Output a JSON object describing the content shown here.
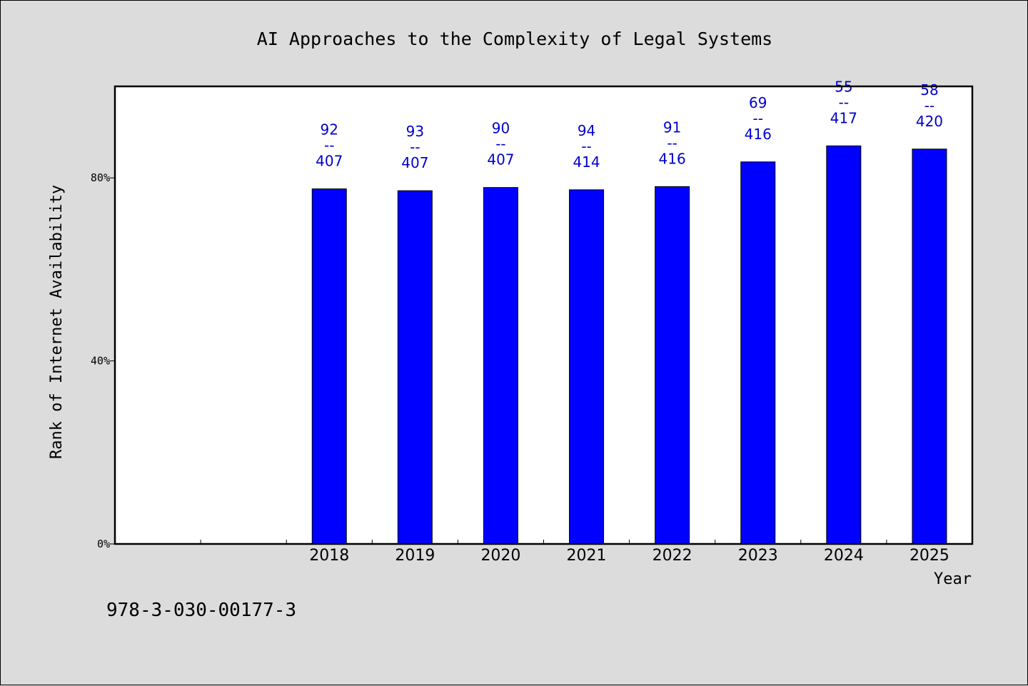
{
  "chart_data": {
    "type": "bar",
    "title": "AI Approaches to the Complexity of Legal Systems",
    "xlabel": "Year",
    "ylabel": "Rank of Internet Availability",
    "ylim": [
      0,
      100
    ],
    "yticks": [
      0,
      40,
      80
    ],
    "ytick_labels": [
      "0%",
      "40%",
      "80%"
    ],
    "categories": [
      "",
      "",
      "2018",
      "2019",
      "2020",
      "2021",
      "2022",
      "2023",
      "2024",
      "2025"
    ],
    "values": [
      null,
      null,
      77.6,
      77.2,
      77.9,
      77.4,
      78.1,
      83.5,
      87.0,
      86.3
    ],
    "labels": [
      null,
      null,
      {
        "top": "92",
        "sep": "--",
        "bottom": "407"
      },
      {
        "top": "93",
        "sep": "--",
        "bottom": "407"
      },
      {
        "top": "90",
        "sep": "--",
        "bottom": "407"
      },
      {
        "top": "94",
        "sep": "--",
        "bottom": "414"
      },
      {
        "top": "91",
        "sep": "--",
        "bottom": "416"
      },
      {
        "top": "69",
        "sep": "--",
        "bottom": "416"
      },
      {
        "top": "55",
        "sep": "--",
        "bottom": "417"
      },
      {
        "top": "58",
        "sep": "--",
        "bottom": "420"
      }
    ],
    "bar_color": "#0000ff",
    "label_color": "#0000cc",
    "grid": false,
    "legend": "none"
  },
  "footnote": "978-3-030-00177-3"
}
